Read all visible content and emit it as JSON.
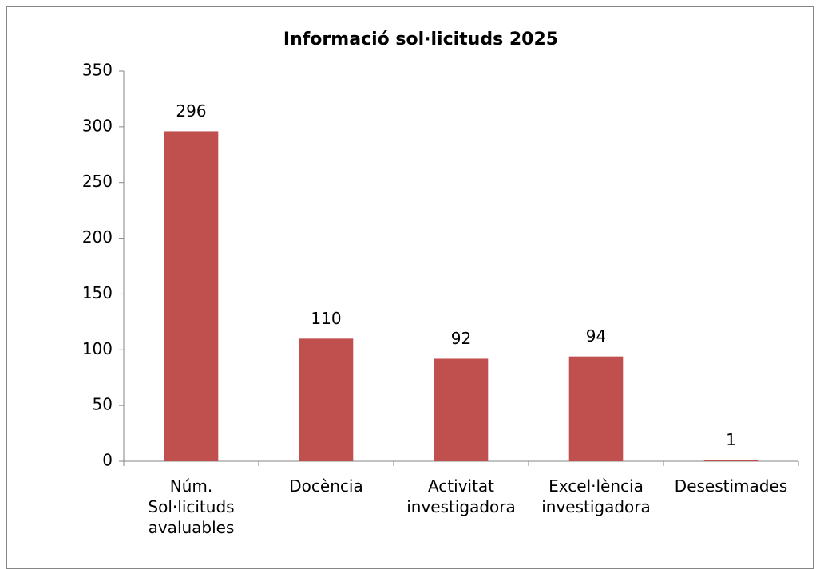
{
  "chart_data": {
    "type": "bar",
    "title": "Informació sol·licituds 2025",
    "categories": [
      "Núm. Sol·licituds avaluables",
      "Docència",
      "Activitat investigadora",
      "Excel·lència investigadora",
      "Desestimades"
    ],
    "values": [
      296,
      110,
      92,
      94,
      1
    ],
    "color": "#c0504d",
    "ylim": [
      0,
      350
    ],
    "yticks": [
      0,
      50,
      100,
      150,
      200,
      250,
      300,
      350
    ],
    "grid": false
  }
}
